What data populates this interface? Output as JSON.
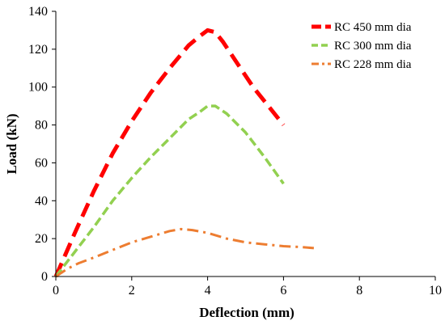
{
  "chart_data": {
    "type": "line",
    "title": "",
    "xlabel": "Deflection (mm)",
    "ylabel": "Load (kN)",
    "xlim": [
      0,
      10
    ],
    "ylim": [
      0,
      140
    ],
    "x_ticks": [
      "0",
      "2",
      "4",
      "6",
      "8",
      "10"
    ],
    "y_ticks": [
      "0",
      "20",
      "40",
      "60",
      "80",
      "100",
      "120",
      "140"
    ],
    "grid": false,
    "legend_position": "top-right",
    "series": [
      {
        "name": "RC 450 mm dia",
        "color": "#ff0000",
        "style": "long-dash",
        "x": [
          0,
          0.5,
          1.0,
          1.5,
          2.0,
          2.5,
          3.0,
          3.5,
          3.8,
          4.0,
          4.2,
          4.4,
          4.8,
          5.2,
          5.6,
          6.0
        ],
        "y": [
          0,
          23,
          45,
          65,
          82,
          97,
          110,
          122,
          127,
          130,
          129,
          124,
          112,
          100,
          90,
          80
        ]
      },
      {
        "name": "RC 300 mm dia",
        "color": "#92d050",
        "style": "dash",
        "x": [
          0,
          0.5,
          1.0,
          1.5,
          2.0,
          2.5,
          3.0,
          3.5,
          3.8,
          4.0,
          4.2,
          4.5,
          5.0,
          5.5,
          6.0
        ],
        "y": [
          0,
          13,
          26,
          40,
          52,
          63,
          73,
          83,
          87,
          90,
          90,
          86,
          76,
          63,
          49
        ]
      },
      {
        "name": "RC 228 mm dia",
        "color": "#ed7d31",
        "style": "dash-dot",
        "x": [
          0,
          0.3,
          0.6,
          1.0,
          1.5,
          2.0,
          2.5,
          3.0,
          3.3,
          3.6,
          4.0,
          4.5,
          5.0,
          5.5,
          6.0,
          6.5,
          6.8
        ],
        "y": [
          0,
          4,
          7,
          10,
          14,
          18,
          21,
          24,
          25,
          24.5,
          23,
          20,
          18,
          17,
          16,
          15.5,
          15
        ]
      }
    ]
  }
}
